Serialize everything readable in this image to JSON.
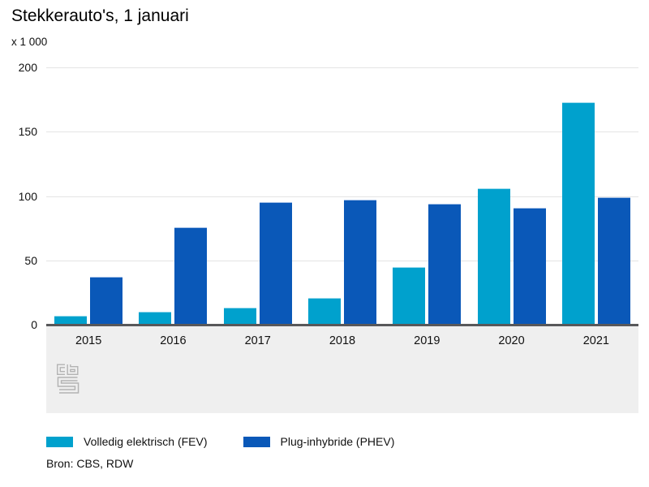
{
  "header": {
    "title": "Stekkerauto's, 1 januari",
    "unit_label": "x 1 000"
  },
  "chart_data": {
    "type": "bar",
    "title": "Stekkerauto's, 1 januari",
    "xlabel": "",
    "ylabel": "x 1 000",
    "categories": [
      "2015",
      "2016",
      "2017",
      "2018",
      "2019",
      "2020",
      "2021"
    ],
    "series": [
      {
        "name": "Volledig elektrisch (FEV)",
        "color": "#00a1cd",
        "border_color": "#9edbec",
        "values": [
          7,
          10,
          13,
          21,
          45,
          106,
          173
        ]
      },
      {
        "name": "Plug-inhybride (PHEV)",
        "color": "#0a58b8",
        "border_color": "#a6c2e8",
        "values": [
          37,
          76,
          95,
          97,
          94,
          91,
          99
        ]
      }
    ],
    "ylim": [
      0,
      200
    ],
    "yticks": [
      0,
      50,
      100,
      150,
      200
    ],
    "grid": true,
    "legend_position": "bottom"
  },
  "footer": {
    "source": "Bron: CBS, RDW"
  },
  "icons": {
    "watermark": "cbs-logo"
  },
  "colors": {
    "axis": "#58585a",
    "gridline": "#e4e4e4",
    "band": "#efefef",
    "logo": "#b3b3b3",
    "text": "#000000"
  }
}
